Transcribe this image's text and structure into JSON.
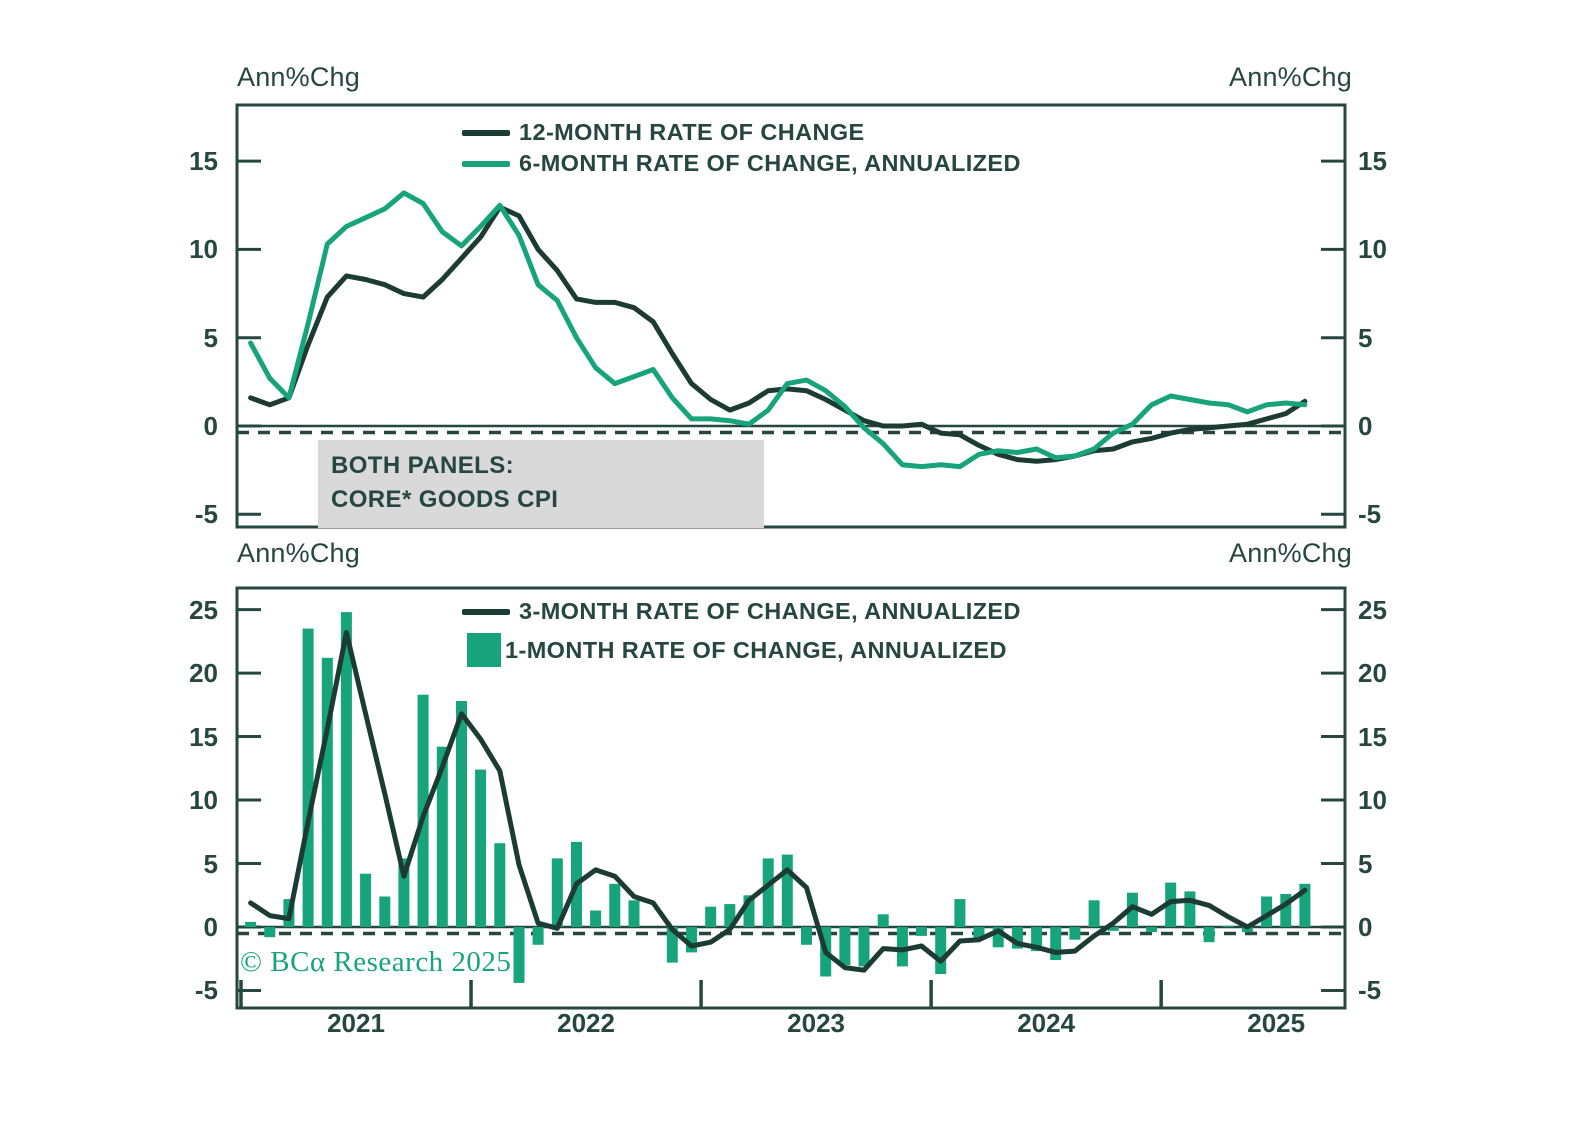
{
  "colors": {
    "dark_line": "#1b3b33",
    "green": "#17a37c",
    "text": "#26473f",
    "annotation_bg": "#d9d9d9",
    "background": "#ffffff"
  },
  "top_panel": {
    "unit_label_left": "Ann%Chg",
    "unit_label_right": "Ann%Chg",
    "legend": [
      {
        "label": "12-MONTH RATE OF CHANGE",
        "swatch": "dark-line"
      },
      {
        "label": "6-MONTH RATE OF CHANGE, ANNUALIZED",
        "swatch": "green-line"
      }
    ],
    "annotation": {
      "line1": "BOTH PANELS:",
      "line2": "CORE* GOODS CPI"
    }
  },
  "bottom_panel": {
    "unit_label_left": "Ann%Chg",
    "unit_label_right": "Ann%Chg",
    "legend": [
      {
        "label": "3-MONTH RATE OF CHANGE, ANNUALIZED",
        "swatch": "dark-line"
      },
      {
        "label": "1-MONTH RATE OF CHANGE, ANNUALIZED",
        "swatch": "green-square"
      }
    ],
    "copyright": "© BCα Research 2025"
  },
  "x_axis": {
    "year_labels": [
      "2021",
      "2022",
      "2023",
      "2024",
      "2025"
    ]
  },
  "chart_data": [
    {
      "type": "line",
      "title": "Core Goods CPI - 12-month and 6-month rates of change",
      "ylabel": "Ann%Chg",
      "ylim": [
        -5.72,
        18.18
      ],
      "yticks": [
        15,
        10,
        5,
        0,
        -5
      ],
      "zero_line": true,
      "dashed_zero_line": true,
      "grid": false,
      "legend_position": "top-center",
      "x": [
        "2021-01",
        "2021-02",
        "2021-03",
        "2021-04",
        "2021-05",
        "2021-06",
        "2021-07",
        "2021-08",
        "2021-09",
        "2021-10",
        "2021-11",
        "2021-12",
        "2022-01",
        "2022-02",
        "2022-03",
        "2022-04",
        "2022-05",
        "2022-06",
        "2022-07",
        "2022-08",
        "2022-09",
        "2022-10",
        "2022-11",
        "2022-12",
        "2023-01",
        "2023-02",
        "2023-03",
        "2023-04",
        "2023-05",
        "2023-06",
        "2023-07",
        "2023-08",
        "2023-09",
        "2023-10",
        "2023-11",
        "2023-12",
        "2024-01",
        "2024-02",
        "2024-03",
        "2024-04",
        "2024-05",
        "2024-06",
        "2024-07",
        "2024-08",
        "2024-09",
        "2024-10",
        "2024-11",
        "2024-12",
        "2025-01",
        "2025-02",
        "2025-03",
        "2025-04",
        "2025-05",
        "2025-06",
        "2025-07",
        "2025-08"
      ],
      "series": [
        {
          "name": "12-MONTH RATE OF CHANGE",
          "color_key": "dark_line",
          "style": "line",
          "values": [
            1.6,
            1.2,
            1.6,
            4.6,
            7.3,
            8.5,
            8.3,
            8.0,
            7.5,
            7.3,
            8.3,
            9.5,
            10.7,
            12.4,
            11.9,
            10.0,
            8.8,
            7.2,
            7.0,
            7.0,
            6.7,
            5.9,
            4.1,
            2.4,
            1.5,
            0.9,
            1.3,
            2.0,
            2.1,
            2.0,
            1.5,
            0.9,
            0.3,
            0.0,
            0.0,
            0.1,
            -0.4,
            -0.5,
            -1.1,
            -1.6,
            -1.9,
            -2.0,
            -1.9,
            -1.7,
            -1.4,
            -1.3,
            -0.9,
            -0.7,
            -0.4,
            -0.2,
            -0.1,
            0.0,
            0.1,
            0.4,
            0.7,
            1.4
          ]
        },
        {
          "name": "6-MONTH RATE OF CHANGE, ANNUALIZED",
          "color_key": "green",
          "style": "line",
          "values": [
            4.7,
            2.7,
            1.6,
            5.8,
            10.3,
            11.3,
            11.8,
            12.3,
            13.2,
            12.6,
            11.0,
            10.2,
            11.3,
            12.5,
            10.8,
            8.0,
            7.1,
            5.0,
            3.3,
            2.4,
            2.8,
            3.2,
            1.6,
            0.4,
            0.4,
            0.3,
            0.1,
            0.9,
            2.4,
            2.6,
            2.0,
            1.1,
            -0.1,
            -1.0,
            -2.2,
            -2.3,
            -2.2,
            -2.3,
            -1.6,
            -1.4,
            -1.5,
            -1.3,
            -1.8,
            -1.7,
            -1.3,
            -0.4,
            0.1,
            1.2,
            1.7,
            1.5,
            1.3,
            1.2,
            0.8,
            1.2,
            1.3,
            1.2
          ]
        }
      ]
    },
    {
      "type": "bar",
      "title": "Core Goods CPI - 3-month and 1-month rates of change, annualized",
      "ylabel": "Ann%Chg",
      "ylim": [
        -6.38,
        26.7
      ],
      "yticks": [
        25,
        20,
        15,
        10,
        5,
        0,
        -5
      ],
      "zero_line": true,
      "dashed_zero_line": true,
      "grid": false,
      "legend_position": "top-center",
      "x": [
        "2021-01",
        "2021-02",
        "2021-03",
        "2021-04",
        "2021-05",
        "2021-06",
        "2021-07",
        "2021-08",
        "2021-09",
        "2021-10",
        "2021-11",
        "2021-12",
        "2022-01",
        "2022-02",
        "2022-03",
        "2022-04",
        "2022-05",
        "2022-06",
        "2022-07",
        "2022-08",
        "2022-09",
        "2022-10",
        "2022-11",
        "2022-12",
        "2023-01",
        "2023-02",
        "2023-03",
        "2023-04",
        "2023-05",
        "2023-06",
        "2023-07",
        "2023-08",
        "2023-09",
        "2023-10",
        "2023-11",
        "2023-12",
        "2024-01",
        "2024-02",
        "2024-03",
        "2024-04",
        "2024-05",
        "2024-06",
        "2024-07",
        "2024-08",
        "2024-09",
        "2024-10",
        "2024-11",
        "2024-12",
        "2025-01",
        "2025-02",
        "2025-03",
        "2025-04",
        "2025-05",
        "2025-06",
        "2025-07",
        "2025-08"
      ],
      "series": [
        {
          "name": "3-MONTH RATE OF CHANGE, ANNUALIZED",
          "color_key": "dark_line",
          "style": "line",
          "values": [
            1.9,
            0.9,
            0.65,
            8.3,
            15.6,
            23.2,
            16.8,
            10.5,
            4.0,
            8.7,
            12.6,
            16.8,
            14.8,
            12.3,
            4.9,
            0.3,
            -0.1,
            3.4,
            4.5,
            4.0,
            2.4,
            1.9,
            -0.2,
            -1.5,
            -1.2,
            -0.2,
            2.1,
            3.3,
            4.5,
            3.1,
            -2.0,
            -3.2,
            -3.4,
            -1.7,
            -1.8,
            -1.5,
            -2.7,
            -1.1,
            -1.0,
            -0.3,
            -1.3,
            -1.6,
            -2.0,
            -1.9,
            -0.7,
            0.3,
            1.6,
            1.0,
            2.0,
            2.1,
            1.7,
            0.8,
            0.0,
            0.9,
            1.8,
            2.9
          ]
        },
        {
          "name": "1-MONTH RATE OF CHANGE, ANNUALIZED",
          "color_key": "green",
          "style": "bar",
          "values": [
            0.4,
            -0.8,
            2.2,
            23.5,
            21.2,
            24.8,
            4.2,
            2.4,
            5.4,
            18.3,
            14.2,
            17.8,
            12.4,
            6.6,
            -4.4,
            -1.4,
            5.4,
            6.7,
            1.3,
            3.4,
            2.1,
            0.0,
            -2.8,
            -2.0,
            1.6,
            1.8,
            2.5,
            5.4,
            5.7,
            -1.4,
            -3.9,
            -3.0,
            -3.1,
            1.0,
            -3.1,
            -0.7,
            -3.7,
            2.2,
            -1.0,
            -1.6,
            -1.7,
            -1.9,
            -2.6,
            -1.0,
            2.1,
            -0.3,
            2.7,
            -0.4,
            3.5,
            2.8,
            -1.2,
            0.1,
            -0.4,
            2.4,
            2.6,
            3.4
          ]
        }
      ]
    }
  ]
}
